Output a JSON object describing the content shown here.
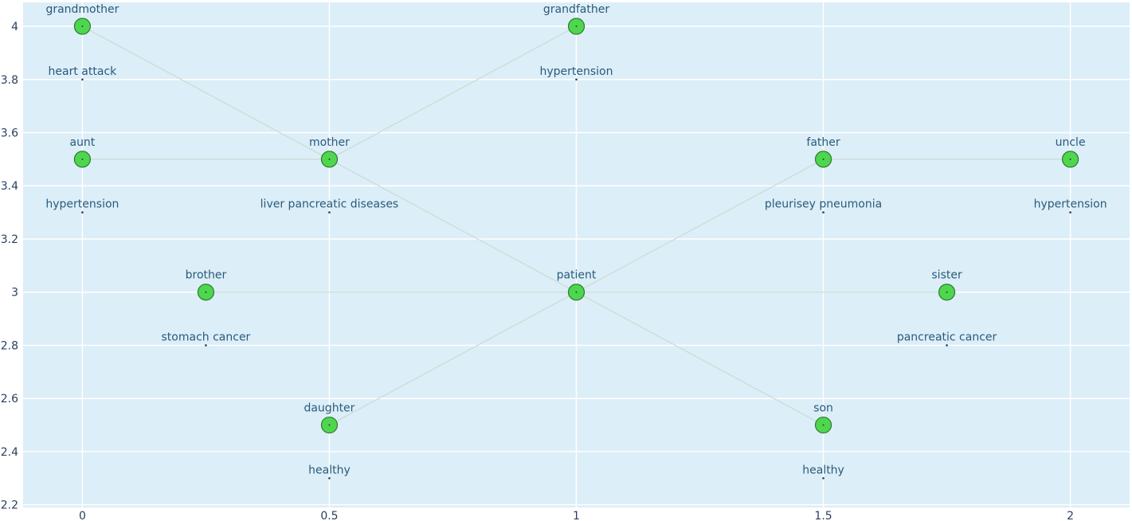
{
  "chart_data": {
    "type": "scatter",
    "title": "",
    "xlabel": "",
    "ylabel": "",
    "xlim": [
      -0.12,
      2.12
    ],
    "ylim": [
      2.19,
      4.09
    ],
    "x_ticks": [
      "0",
      "0.5",
      "1",
      "1.5",
      "2"
    ],
    "y_ticks": [
      "2.2",
      "2.4",
      "2.6",
      "2.8",
      "3",
      "3.2",
      "3.4",
      "3.6",
      "3.8",
      "4"
    ],
    "grid": true,
    "legend": "none",
    "colors": {
      "plot_background": "#dceef8",
      "grid": "#ffffff",
      "node_fill": "#4fd64f",
      "node_outline": "#2d7a2d",
      "edge": "#c9dccf",
      "label": "#2a5a7a"
    },
    "nodes": [
      {
        "name": "grandmother",
        "x": 0,
        "y": 4
      },
      {
        "name": "grandfather",
        "x": 1,
        "y": 4
      },
      {
        "name": "aunt",
        "x": 0,
        "y": 3.5
      },
      {
        "name": "mother",
        "x": 0.5,
        "y": 3.5
      },
      {
        "name": "father",
        "x": 1.5,
        "y": 3.5
      },
      {
        "name": "uncle",
        "x": 2,
        "y": 3.5
      },
      {
        "name": "brother",
        "x": 0.25,
        "y": 3
      },
      {
        "name": "patient",
        "x": 1,
        "y": 3
      },
      {
        "name": "sister",
        "x": 1.75,
        "y": 3
      },
      {
        "name": "daughter",
        "x": 0.5,
        "y": 2.5
      },
      {
        "name": "son",
        "x": 1.5,
        "y": 2.5
      }
    ],
    "conditions": [
      {
        "text": "heart attack",
        "x": 0,
        "y": 3.8
      },
      {
        "text": "hypertension",
        "x": 1,
        "y": 3.8
      },
      {
        "text": "hypertension",
        "x": 0,
        "y": 3.3
      },
      {
        "text": "liver pancreatic diseases",
        "x": 0.5,
        "y": 3.3
      },
      {
        "text": "pleurisey pneumonia",
        "x": 1.5,
        "y": 3.3
      },
      {
        "text": "hypertension",
        "x": 2,
        "y": 3.3
      },
      {
        "text": "stomach cancer",
        "x": 0.25,
        "y": 2.8
      },
      {
        "text": "pancreatic cancer",
        "x": 1.75,
        "y": 2.8
      },
      {
        "text": "healthy",
        "x": 0.5,
        "y": 2.3
      },
      {
        "text": "healthy",
        "x": 1.5,
        "y": 2.3
      }
    ],
    "edges": [
      [
        [
          0,
          4
        ],
        [
          1,
          3
        ]
      ],
      [
        [
          0.5,
          3.5
        ],
        [
          1,
          4
        ]
      ],
      [
        [
          0,
          3.5
        ],
        [
          0.5,
          3.5
        ]
      ],
      [
        [
          1.5,
          3.5
        ],
        [
          2,
          3.5
        ]
      ],
      [
        [
          1,
          3
        ],
        [
          1.5,
          3.5
        ]
      ],
      [
        [
          0.25,
          3
        ],
        [
          1.75,
          3
        ]
      ],
      [
        [
          0.5,
          2.5
        ],
        [
          1,
          3
        ]
      ],
      [
        [
          1,
          3
        ],
        [
          1.5,
          2.5
        ]
      ]
    ]
  }
}
